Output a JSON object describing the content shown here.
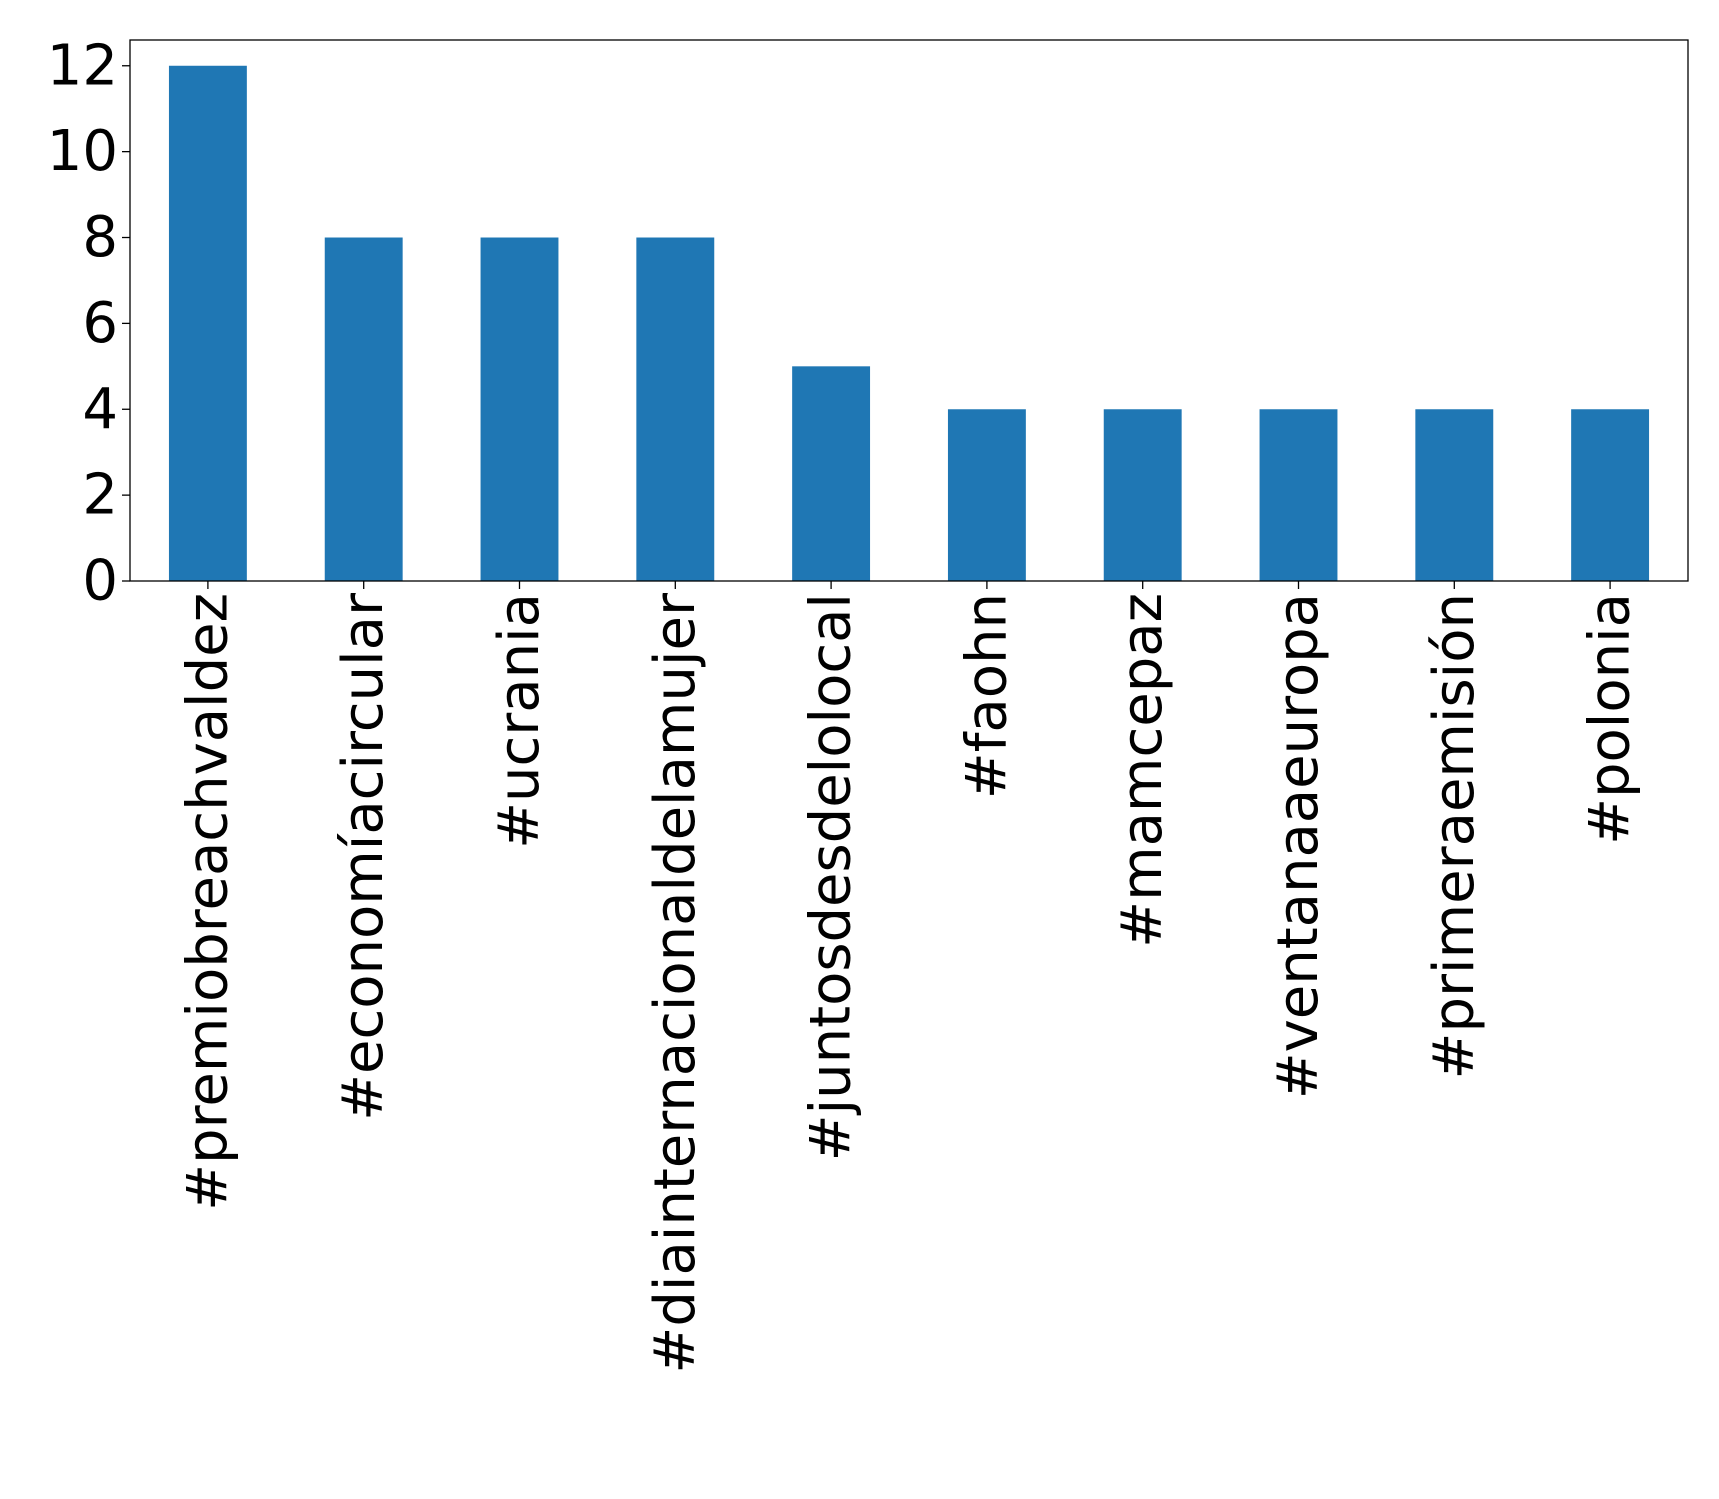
{
  "chart_data": {
    "type": "bar",
    "categories": [
      "#premiobreachvaldez",
      "#economíacircular",
      "#ucrania",
      "#diainternacionaldelamujer",
      "#juntosdesdelolocal",
      "#faohn",
      "#mamcepaz",
      "#ventanaaeuropa",
      "#primeraemisión",
      "#polonia"
    ],
    "values": [
      12,
      8,
      8,
      8,
      5,
      4,
      4,
      4,
      4,
      4
    ],
    "ylim": [
      0,
      12.6
    ],
    "yticks": [
      0,
      2,
      4,
      6,
      8,
      10,
      12
    ],
    "title": "",
    "xlabel": "",
    "ylabel": "",
    "grid": false,
    "legend": "none",
    "bar_color": "#1f77b4"
  }
}
